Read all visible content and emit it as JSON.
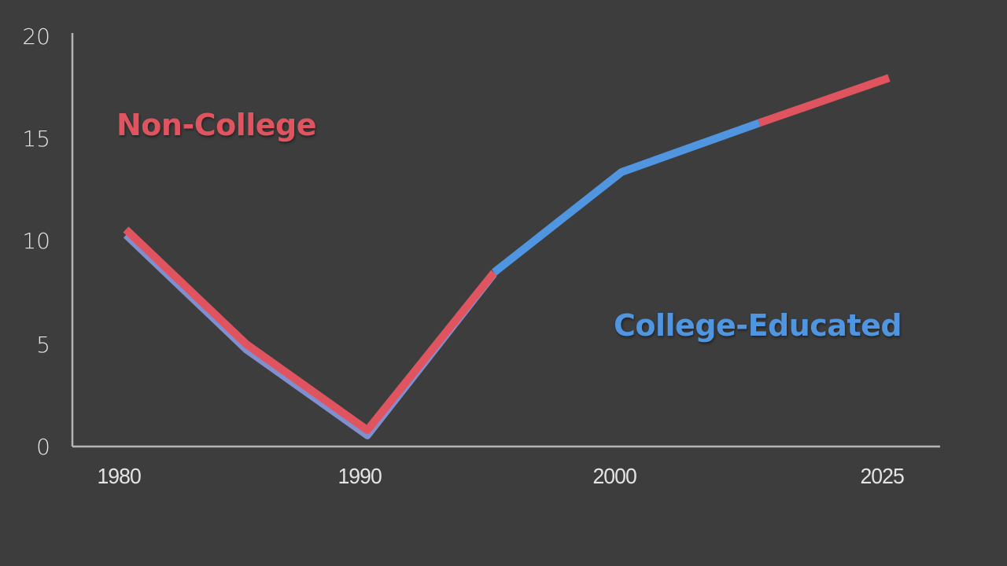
{
  "chart_data": {
    "type": "line",
    "title": "",
    "xlabel": "",
    "ylabel": "",
    "ylim": [
      0,
      20
    ],
    "yticks": [
      0,
      5,
      10,
      15,
      20
    ],
    "xtick_labels": [
      "1980",
      "1990",
      "2000",
      "2025"
    ],
    "grid": false,
    "legend": "inline annotations",
    "annotations": [
      {
        "text": "Non-College",
        "color": "#e0545f"
      },
      {
        "text": "College-Educated",
        "color": "#4f95e0"
      }
    ],
    "series": [
      {
        "name": "Non-College",
        "color": "#e0545f",
        "x": [
          1980,
          1985,
          1990,
          1995,
          2000,
          2010,
          2025
        ],
        "values": [
          10.6,
          5.0,
          0.8,
          8.5,
          13.4,
          15.8,
          18.0
        ]
      },
      {
        "name": "College-Educated",
        "color": "#4f95e0",
        "x": [
          1980,
          1985,
          1990,
          1995,
          2000,
          2010,
          2025
        ],
        "values": [
          10.4,
          4.8,
          0.6,
          8.5,
          13.4,
          15.8,
          18.0
        ]
      }
    ],
    "segment_colors_note": "Line drawn red from 1980-1995, blue from 1995-2010, red from 2010-2025"
  },
  "axis": {
    "y_labels": [
      "20",
      "15",
      "10",
      "5",
      "0"
    ],
    "x_labels": [
      "1980",
      "1990",
      "2000",
      "2025"
    ]
  },
  "labels": {
    "non_college": "Non-College",
    "college": "College-Educated"
  },
  "colors": {
    "background": "#3d3d3d",
    "axis": "#bdbdbd",
    "red": "#e0545f",
    "blue": "#4f95e0",
    "text": "#e4e4e4"
  }
}
